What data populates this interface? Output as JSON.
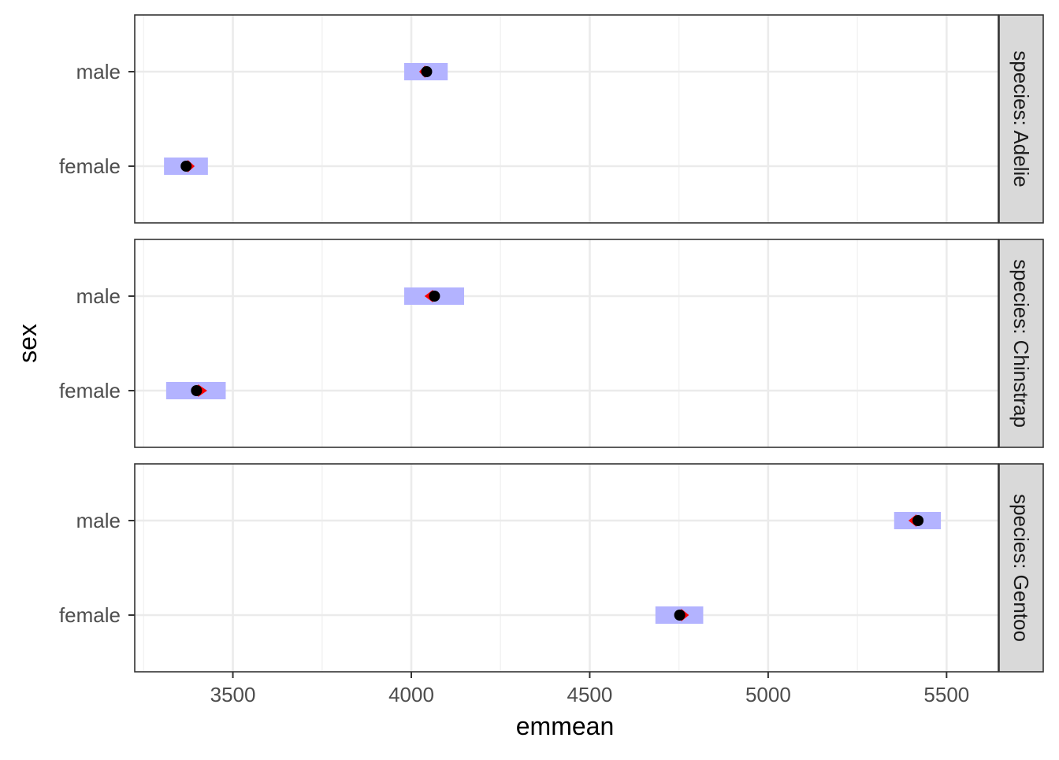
{
  "chart_data": {
    "type": "scatter",
    "title": "",
    "xlabel": "emmean",
    "ylabel": "sex",
    "xlim": [
      3225,
      5645
    ],
    "x_ticks": [
      "3500",
      "4000",
      "4500",
      "5000",
      "5500"
    ],
    "x_tick_values": [
      3500,
      4000,
      4500,
      5000,
      5500
    ],
    "categories": [
      "female",
      "male"
    ],
    "grid": true,
    "legend": "none",
    "facets": [
      {
        "strip": "species: Adelie",
        "points": [
          {
            "sex": "male",
            "emmean": 4043,
            "ci_low": 3980,
            "ci_high": 4102,
            "arrow_tip": 4022
          },
          {
            "sex": "female",
            "emmean": 3369,
            "ci_low": 3307,
            "ci_high": 3430,
            "arrow_tip": 3393
          }
        ]
      },
      {
        "strip": "species: Chinstrap",
        "points": [
          {
            "sex": "male",
            "emmean": 4065,
            "ci_low": 3980,
            "ci_high": 4148,
            "arrow_tip": 4037
          },
          {
            "sex": "female",
            "emmean": 3398,
            "ci_low": 3313,
            "ci_high": 3480,
            "arrow_tip": 3428
          }
        ]
      },
      {
        "strip": "species: Gentoo",
        "points": [
          {
            "sex": "male",
            "emmean": 5420,
            "ci_low": 5353,
            "ci_high": 5484,
            "arrow_tip": 5393
          },
          {
            "sex": "female",
            "emmean": 4752,
            "ci_low": 4684,
            "ci_high": 4818,
            "arrow_tip": 4778
          }
        ]
      }
    ],
    "colors": {
      "ci_bar": "#b3b3ff",
      "arrow": "#ff0000",
      "point": "#000000",
      "grid_major": "#ebebeb",
      "grid_minor": "#f2f2f2",
      "strip_fill": "#d9d9d9",
      "panel_border": "#333333"
    }
  }
}
